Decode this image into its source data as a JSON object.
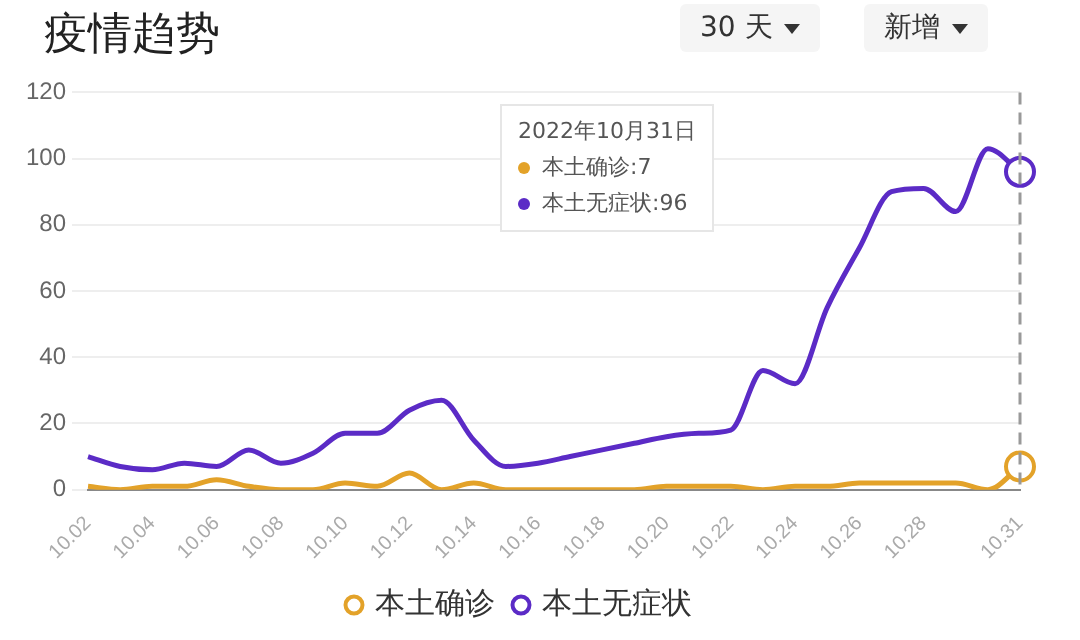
{
  "chart_data": {
    "type": "line",
    "title": "疫情趋势",
    "categories": [
      "10.02",
      null,
      "10.04",
      null,
      "10.06",
      null,
      "10.08",
      null,
      "10.10",
      null,
      "10.12",
      null,
      "10.14",
      null,
      "10.16",
      null,
      "10.18",
      null,
      "10.20",
      null,
      "10.22",
      null,
      "10.24",
      null,
      "10.26",
      null,
      "10.28",
      null,
      null,
      "10.31"
    ],
    "series": [
      {
        "name": "本土确诊",
        "color": "#e3a229",
        "values": [
          1,
          0,
          1,
          1,
          3,
          1,
          0,
          0,
          2,
          1,
          5,
          0,
          2,
          0,
          0,
          0,
          0,
          0,
          1,
          1,
          1,
          0,
          1,
          1,
          2,
          2,
          2,
          2,
          0,
          7
        ]
      },
      {
        "name": "本土无症状",
        "color": "#5b2bc6",
        "values": [
          10,
          7,
          6,
          8,
          7,
          12,
          8,
          11,
          17,
          17,
          24,
          27,
          15,
          7,
          8,
          10,
          12,
          14,
          16,
          17,
          18,
          36,
          32,
          55,
          73,
          90,
          91,
          84,
          103,
          96
        ]
      }
    ],
    "ylim": [
      0,
      120
    ],
    "yticks": [
      0,
      20,
      40,
      60,
      80,
      100,
      120
    ],
    "grid": "y",
    "legend": "bottom",
    "marker": "none",
    "line_style": "solid",
    "ref_lines": [
      {
        "axis": "x",
        "value": "10.31",
        "color": "#999999",
        "line_style": "dashed"
      }
    ],
    "annotations": [
      "30 天",
      "新增",
      "2022年10月31日",
      "本土确诊:7",
      "本土无症状:96"
    ]
  }
}
